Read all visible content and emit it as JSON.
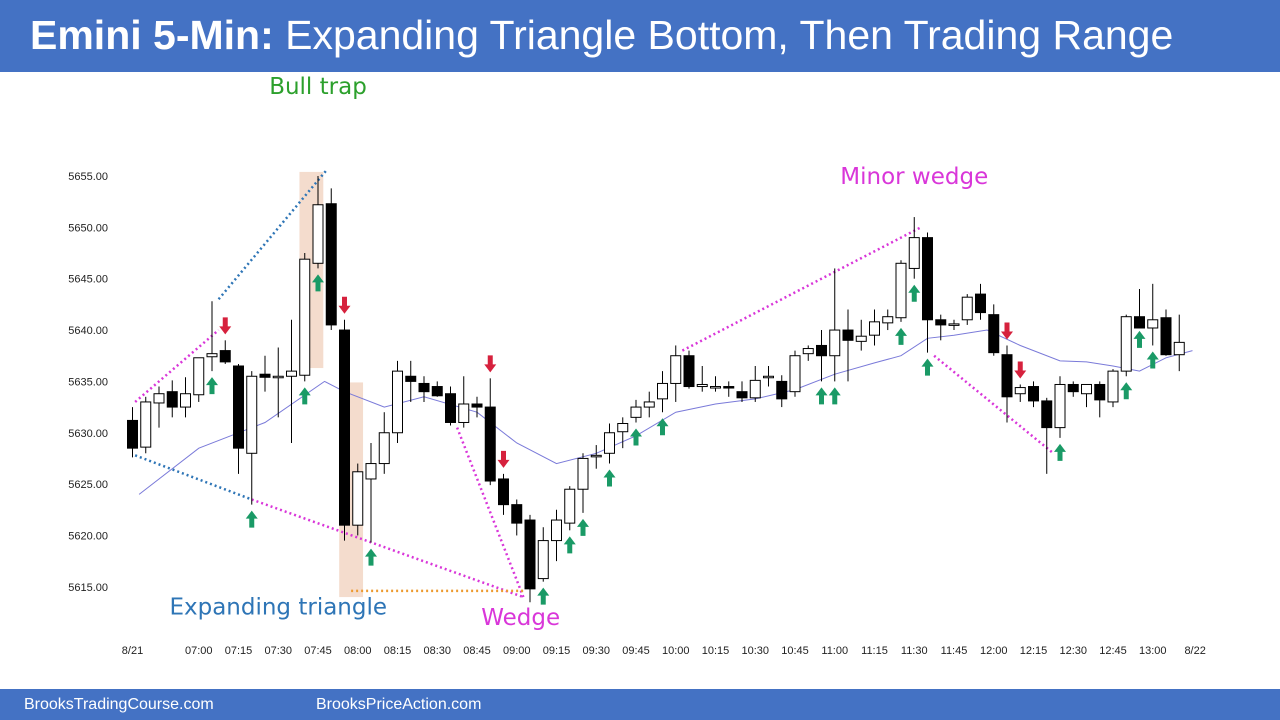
{
  "header": {
    "title_bold": "Emini 5-Min:",
    "title_rest": "Expanding Triangle Bottom, Then Trading Range",
    "background": "#4472c4"
  },
  "footer": {
    "left_link": "BrooksTradingCourse.com",
    "right_link": "BrooksPriceAction.com"
  },
  "chart_data": {
    "type": "candlestick",
    "title": "",
    "ylim": [
      5613,
      5657
    ],
    "y_ticks": [
      "5615.00",
      "5620.00",
      "5625.00",
      "5630.00",
      "5635.00",
      "5640.00",
      "5645.00",
      "5650.00",
      "5655.00"
    ],
    "x_ticks": [
      {
        "label": "8/21",
        "bar": 0
      },
      {
        "label": "07:00",
        "bar": 5
      },
      {
        "label": "07:15",
        "bar": 8
      },
      {
        "label": "07:30",
        "bar": 11
      },
      {
        "label": "07:45",
        "bar": 14
      },
      {
        "label": "08:00",
        "bar": 17
      },
      {
        "label": "08:15",
        "bar": 20
      },
      {
        "label": "08:30",
        "bar": 23
      },
      {
        "label": "08:45",
        "bar": 26
      },
      {
        "label": "09:00",
        "bar": 29
      },
      {
        "label": "09:15",
        "bar": 32
      },
      {
        "label": "09:30",
        "bar": 35
      },
      {
        "label": "09:45",
        "bar": 38
      },
      {
        "label": "10:00",
        "bar": 41
      },
      {
        "label": "10:15",
        "bar": 44
      },
      {
        "label": "10:30",
        "bar": 47
      },
      {
        "label": "10:45",
        "bar": 50
      },
      {
        "label": "11:00",
        "bar": 53
      },
      {
        "label": "11:15",
        "bar": 56
      },
      {
        "label": "11:30",
        "bar": 59
      },
      {
        "label": "11:45",
        "bar": 62
      },
      {
        "label": "12:00",
        "bar": 65
      },
      {
        "label": "12:15",
        "bar": 68
      },
      {
        "label": "12:30",
        "bar": 71
      },
      {
        "label": "12:45",
        "bar": 74
      },
      {
        "label": "13:00",
        "bar": 77
      },
      {
        "label": "8/22",
        "bar": 80.2
      }
    ],
    "bars": [
      {
        "o": 5631.2,
        "h": 5632.5,
        "l": 5627.6,
        "c": 5628.5
      },
      {
        "o": 5628.6,
        "h": 5633.5,
        "l": 5628.0,
        "c": 5633.0
      },
      {
        "o": 5632.9,
        "h": 5634.5,
        "l": 5630.5,
        "c": 5633.8
      },
      {
        "o": 5634.0,
        "h": 5635.1,
        "l": 5631.5,
        "c": 5632.5
      },
      {
        "o": 5632.5,
        "h": 5635.4,
        "l": 5631.5,
        "c": 5633.8
      },
      {
        "o": 5633.7,
        "h": 5636.9,
        "l": 5633.0,
        "c": 5637.3
      },
      {
        "o": 5637.4,
        "h": 5642.8,
        "l": 5636.0,
        "c": 5637.7
      },
      {
        "o": 5638.0,
        "h": 5639.0,
        "l": 5636.7,
        "c": 5636.9
      },
      {
        "o": 5636.5,
        "h": 5636.7,
        "l": 5626.0,
        "c": 5628.5
      },
      {
        "o": 5628.0,
        "h": 5636.0,
        "l": 5623.0,
        "c": 5635.5
      },
      {
        "o": 5635.7,
        "h": 5637.5,
        "l": 5634.0,
        "c": 5635.4
      },
      {
        "o": 5635.5,
        "h": 5638.3,
        "l": 5631.5,
        "c": 5635.5
      },
      {
        "o": 5635.5,
        "h": 5641.0,
        "l": 5629.0,
        "c": 5636.0
      },
      {
        "o": 5635.6,
        "h": 5647.5,
        "l": 5635.0,
        "c": 5646.9
      },
      {
        "o": 5646.5,
        "h": 5655.0,
        "l": 5646.0,
        "c": 5652.2
      },
      {
        "o": 5652.3,
        "h": 5653.8,
        "l": 5640.0,
        "c": 5640.5
      },
      {
        "o": 5640.0,
        "h": 5641.0,
        "l": 5619.5,
        "c": 5621.0
      },
      {
        "o": 5621.0,
        "h": 5627.0,
        "l": 5620.0,
        "c": 5626.2
      },
      {
        "o": 5625.5,
        "h": 5629.0,
        "l": 5619.3,
        "c": 5627.0
      },
      {
        "o": 5627.0,
        "h": 5632.0,
        "l": 5626.0,
        "c": 5630.0
      },
      {
        "o": 5630.0,
        "h": 5637.0,
        "l": 5629.0,
        "c": 5636.0
      },
      {
        "o": 5635.5,
        "h": 5637.0,
        "l": 5633.0,
        "c": 5635.0
      },
      {
        "o": 5634.8,
        "h": 5635.5,
        "l": 5633.0,
        "c": 5634.0
      },
      {
        "o": 5634.5,
        "h": 5635.0,
        "l": 5633.5,
        "c": 5633.6
      },
      {
        "o": 5633.8,
        "h": 5634.5,
        "l": 5630.7,
        "c": 5631.0
      },
      {
        "o": 5631.0,
        "h": 5635.5,
        "l": 5630.5,
        "c": 5632.8
      },
      {
        "o": 5632.8,
        "h": 5633.5,
        "l": 5631.5,
        "c": 5632.5
      },
      {
        "o": 5632.5,
        "h": 5635.3,
        "l": 5624.9,
        "c": 5625.3
      },
      {
        "o": 5625.5,
        "h": 5626.0,
        "l": 5622.0,
        "c": 5623.0
      },
      {
        "o": 5623.0,
        "h": 5623.5,
        "l": 5620.0,
        "c": 5621.2
      },
      {
        "o": 5621.5,
        "h": 5622.0,
        "l": 5613.5,
        "c": 5614.8
      },
      {
        "o": 5615.8,
        "h": 5620.8,
        "l": 5615.5,
        "c": 5619.5
      },
      {
        "o": 5619.5,
        "h": 5622.5,
        "l": 5617.5,
        "c": 5621.5
      },
      {
        "o": 5621.2,
        "h": 5624.8,
        "l": 5620.5,
        "c": 5624.5
      },
      {
        "o": 5624.5,
        "h": 5628.0,
        "l": 5622.2,
        "c": 5627.5
      },
      {
        "o": 5627.8,
        "h": 5628.8,
        "l": 5626.5,
        "c": 5627.8
      },
      {
        "o": 5628.0,
        "h": 5630.9,
        "l": 5627.0,
        "c": 5630.0
      },
      {
        "o": 5630.1,
        "h": 5631.5,
        "l": 5628.5,
        "c": 5630.9
      },
      {
        "o": 5631.5,
        "h": 5633.2,
        "l": 5631.0,
        "c": 5632.5
      },
      {
        "o": 5632.5,
        "h": 5634.0,
        "l": 5631.5,
        "c": 5633.0
      },
      {
        "o": 5633.3,
        "h": 5636.0,
        "l": 5632.0,
        "c": 5634.8
      },
      {
        "o": 5634.8,
        "h": 5638.5,
        "l": 5633.0,
        "c": 5637.5
      },
      {
        "o": 5637.5,
        "h": 5638.0,
        "l": 5634.3,
        "c": 5634.5
      },
      {
        "o": 5634.5,
        "h": 5636.5,
        "l": 5634.0,
        "c": 5634.7
      },
      {
        "o": 5634.5,
        "h": 5635.5,
        "l": 5634.0,
        "c": 5634.5
      },
      {
        "o": 5634.5,
        "h": 5635.0,
        "l": 5633.5,
        "c": 5634.4
      },
      {
        "o": 5634.0,
        "h": 5635.0,
        "l": 5633.0,
        "c": 5633.4
      },
      {
        "o": 5633.4,
        "h": 5636.5,
        "l": 5633.0,
        "c": 5635.1
      },
      {
        "o": 5635.5,
        "h": 5636.5,
        "l": 5634.5,
        "c": 5635.5
      },
      {
        "o": 5635.0,
        "h": 5635.6,
        "l": 5632.5,
        "c": 5633.3
      },
      {
        "o": 5634.0,
        "h": 5638.0,
        "l": 5633.5,
        "c": 5637.5
      },
      {
        "o": 5637.7,
        "h": 5638.5,
        "l": 5637.0,
        "c": 5638.2
      },
      {
        "o": 5638.5,
        "h": 5640.0,
        "l": 5635.0,
        "c": 5637.5
      },
      {
        "o": 5637.5,
        "h": 5646.0,
        "l": 5635.0,
        "c": 5640.0
      },
      {
        "o": 5640.0,
        "h": 5642.0,
        "l": 5635.0,
        "c": 5639.0
      },
      {
        "o": 5638.9,
        "h": 5641.0,
        "l": 5638.0,
        "c": 5639.4
      },
      {
        "o": 5639.5,
        "h": 5642.0,
        "l": 5638.5,
        "c": 5640.8
      },
      {
        "o": 5640.7,
        "h": 5642.0,
        "l": 5640.0,
        "c": 5641.3
      },
      {
        "o": 5641.2,
        "h": 5646.8,
        "l": 5640.8,
        "c": 5646.5
      },
      {
        "o": 5646.0,
        "h": 5651.0,
        "l": 5645.0,
        "c": 5649.0
      },
      {
        "o": 5649.0,
        "h": 5649.5,
        "l": 5637.8,
        "c": 5641.0
      },
      {
        "o": 5641.0,
        "h": 5641.5,
        "l": 5639.0,
        "c": 5640.5
      },
      {
        "o": 5640.5,
        "h": 5641.0,
        "l": 5640.0,
        "c": 5640.6
      },
      {
        "o": 5641.0,
        "h": 5643.5,
        "l": 5640.5,
        "c": 5643.2
      },
      {
        "o": 5643.5,
        "h": 5644.5,
        "l": 5641.0,
        "c": 5641.7
      },
      {
        "o": 5641.5,
        "h": 5642.5,
        "l": 5637.5,
        "c": 5637.8
      },
      {
        "o": 5637.6,
        "h": 5638.5,
        "l": 5631.0,
        "c": 5633.5
      },
      {
        "o": 5633.8,
        "h": 5634.7,
        "l": 5633.0,
        "c": 5634.4
      },
      {
        "o": 5634.5,
        "h": 5635.0,
        "l": 5632.5,
        "c": 5633.1
      },
      {
        "o": 5633.1,
        "h": 5633.4,
        "l": 5626.0,
        "c": 5630.5
      },
      {
        "o": 5630.5,
        "h": 5635.5,
        "l": 5629.5,
        "c": 5634.7
      },
      {
        "o": 5634.7,
        "h": 5635.0,
        "l": 5633.5,
        "c": 5634.0
      },
      {
        "o": 5633.8,
        "h": 5634.5,
        "l": 5632.5,
        "c": 5634.7
      },
      {
        "o": 5634.7,
        "h": 5635.0,
        "l": 5631.5,
        "c": 5633.2
      },
      {
        "o": 5633.0,
        "h": 5636.2,
        "l": 5632.5,
        "c": 5636.0
      },
      {
        "o": 5636.0,
        "h": 5641.5,
        "l": 5635.5,
        "c": 5641.3
      },
      {
        "o": 5641.3,
        "h": 5644.0,
        "l": 5640.5,
        "c": 5640.2
      },
      {
        "o": 5640.2,
        "h": 5644.5,
        "l": 5638.5,
        "c": 5641.0
      },
      {
        "o": 5641.2,
        "h": 5642.0,
        "l": 5637.5,
        "c": 5637.6
      },
      {
        "o": 5637.6,
        "h": 5641.5,
        "l": 5636.0,
        "c": 5638.8
      }
    ],
    "ema": [
      {
        "bar": 0.5,
        "v": 5624.0
      },
      {
        "bar": 5,
        "v": 5628.5
      },
      {
        "bar": 10,
        "v": 5631.0
      },
      {
        "bar": 14.5,
        "v": 5635.0
      },
      {
        "bar": 16,
        "v": 5634.0
      },
      {
        "bar": 19,
        "v": 5632.5
      },
      {
        "bar": 22,
        "v": 5633.5
      },
      {
        "bar": 26,
        "v": 5632.0
      },
      {
        "bar": 29,
        "v": 5629.0
      },
      {
        "bar": 32,
        "v": 5627.0
      },
      {
        "bar": 35,
        "v": 5628.0
      },
      {
        "bar": 38,
        "v": 5629.7
      },
      {
        "bar": 41,
        "v": 5632.0
      },
      {
        "bar": 44,
        "v": 5632.8
      },
      {
        "bar": 47,
        "v": 5633.3
      },
      {
        "bar": 50,
        "v": 5634.2
      },
      {
        "bar": 53,
        "v": 5635.7
      },
      {
        "bar": 56,
        "v": 5636.8
      },
      {
        "bar": 58,
        "v": 5637.5
      },
      {
        "bar": 60,
        "v": 5639.2
      },
      {
        "bar": 62,
        "v": 5639.5
      },
      {
        "bar": 64.5,
        "v": 5640.0
      },
      {
        "bar": 67,
        "v": 5638.5
      },
      {
        "bar": 70,
        "v": 5637.0
      },
      {
        "bar": 72,
        "v": 5636.9
      },
      {
        "bar": 74,
        "v": 5636.5
      },
      {
        "bar": 76,
        "v": 5636.0
      },
      {
        "bar": 78,
        "v": 5637.3
      },
      {
        "bar": 80,
        "v": 5638.0
      }
    ],
    "up_arrows": [
      6,
      9,
      13,
      14,
      18,
      31,
      33,
      34,
      36,
      38,
      40,
      52,
      53,
      58,
      59,
      60,
      70,
      75,
      76,
      77
    ],
    "down_arrows": [
      7,
      16,
      27,
      28,
      66,
      67
    ],
    "highlights": [
      {
        "from": 12.6,
        "to": 14.4,
        "top": 5655.4,
        "bottom": 5636.3
      },
      {
        "from": 15.6,
        "to": 17.4,
        "top": 5634.9,
        "bottom": 5614.0
      }
    ],
    "trendlines": [
      {
        "label": "bull-flag-upper",
        "color": "#d936d9",
        "from": [
          0.2,
          5633.0
        ],
        "to": [
          6.5,
          5640.0
        ]
      },
      {
        "label": "triangle-upper",
        "color": "#2e75b6",
        "from": [
          6.5,
          5643.0
        ],
        "to": [
          14.6,
          5655.5
        ]
      },
      {
        "label": "triangle-lower-1",
        "color": "#2e75b6",
        "from": [
          0.2,
          5627.8
        ],
        "to": [
          9.0,
          5623.5
        ]
      },
      {
        "label": "triangle-lower-2",
        "color": "#d936d9",
        "from": [
          9.0,
          5623.5
        ],
        "to": [
          29.5,
          5614.0
        ]
      },
      {
        "label": "wedge-upper",
        "color": "#d936d9",
        "from": [
          24.5,
          5630.5
        ],
        "to": [
          29.5,
          5614.0
        ]
      },
      {
        "label": "minor-wedge",
        "color": "#d936d9",
        "from": [
          41.5,
          5638.0
        ],
        "to": [
          59.5,
          5650.0
        ]
      },
      {
        "label": "wedge-down",
        "color": "#d936d9",
        "from": [
          60.5,
          5637.5
        ],
        "to": [
          69.5,
          5628.0
        ]
      },
      {
        "label": "range-bottom",
        "color": "#ed9a2f",
        "from": [
          16.5,
          5614.6
        ],
        "to": [
          29.5,
          5614.6
        ]
      }
    ],
    "annotations": [
      {
        "text": "Bull trap",
        "bar": 14.0,
        "y": 5663.0,
        "color": "#2ca02c"
      },
      {
        "text": "Minor wedge",
        "bar": 59.0,
        "y": 5654.2,
        "color": "#d936d9"
      },
      {
        "text": "Expanding triangle",
        "bar": 11.0,
        "y": 5612.3,
        "color": "#2e75b6"
      },
      {
        "text": "Wedge",
        "bar": 29.3,
        "y": 5611.3,
        "color": "#d936d9"
      }
    ],
    "colors": {
      "bull_body": "#ffffff",
      "bear_body": "#000000",
      "ema": "#7a7ad9",
      "up_arrow": "#1a9a66",
      "down_arrow": "#d6213d",
      "highlight": "#f4dccd"
    }
  }
}
